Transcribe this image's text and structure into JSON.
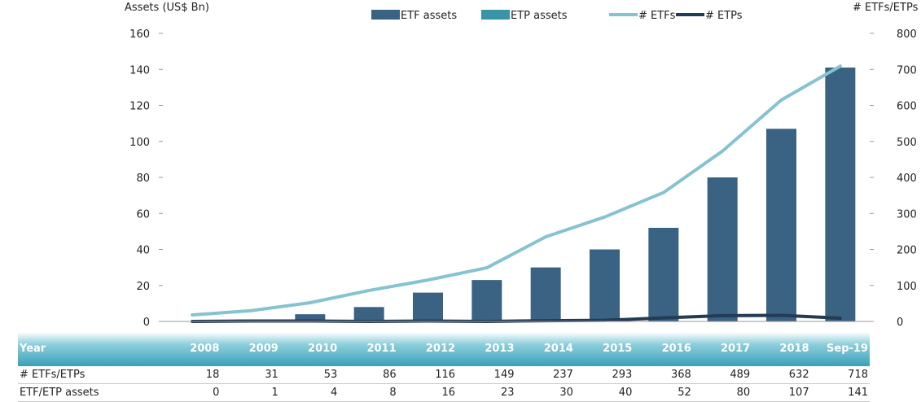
{
  "chart_data": {
    "type": "bar",
    "categories": [
      "2008",
      "2009",
      "2010",
      "2011",
      "2012",
      "2013",
      "2014",
      "2015",
      "2016",
      "2017",
      "2018",
      "Sep-19"
    ],
    "series": [
      {
        "name": "ETF assets",
        "type": "bar",
        "axis": "left",
        "color": "#3a6383",
        "values": [
          0,
          1,
          4,
          8,
          16,
          23,
          30,
          40,
          52,
          80,
          107,
          141
        ]
      },
      {
        "name": "ETP assets",
        "type": "bar",
        "axis": "left",
        "color": "#3a94a8",
        "values": [
          0,
          0,
          0,
          0,
          0,
          0,
          0,
          0,
          0,
          0,
          0,
          0
        ]
      },
      {
        "name": "# ETFs",
        "type": "line",
        "axis": "right",
        "color": "#86c3d0",
        "values": [
          18,
          30,
          52,
          86,
          115,
          149,
          235,
          290,
          358,
          473,
          615,
          709
        ]
      },
      {
        "name": "# ETPs",
        "type": "line",
        "axis": "right",
        "color": "#243b55",
        "values": [
          0,
          1,
          1,
          0,
          1,
          0,
          2,
          3,
          10,
          16,
          17,
          9
        ]
      }
    ],
    "ylabel_left": "Assets (US$ Bn)",
    "ylabel_right": "# ETFs/ETPs",
    "ylim_left": [
      0,
      160
    ],
    "ylim_right": [
      0,
      800
    ],
    "yticks_left": [
      "0",
      "20",
      "40",
      "60",
      "80",
      "100",
      "120",
      "140",
      "160"
    ],
    "yticks_right": [
      "0",
      "100",
      "200",
      "300",
      "400",
      "500",
      "600",
      "700",
      "800"
    ],
    "legend_placement": "top"
  },
  "table": {
    "header_label": "Year",
    "years": [
      "2008",
      "2009",
      "2010",
      "2011",
      "2012",
      "2013",
      "2014",
      "2015",
      "2016",
      "2017",
      "2018",
      "Sep-19"
    ],
    "rows": [
      {
        "label": "# ETFs/ETPs",
        "values": [
          "18",
          "31",
          "53",
          "86",
          "116",
          "149",
          "237",
          "293",
          "368",
          "489",
          "632",
          "718"
        ]
      },
      {
        "label": "ETF/ETP assets",
        "values": [
          "0",
          "1",
          "4",
          "8",
          "16",
          "23",
          "30",
          "40",
          "52",
          "80",
          "107",
          "141"
        ]
      }
    ]
  }
}
